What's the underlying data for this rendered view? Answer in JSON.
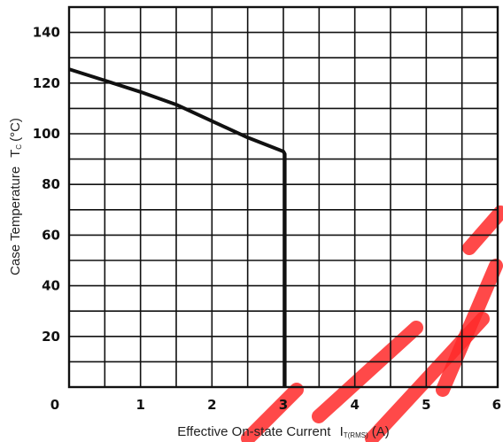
{
  "chart_data": {
    "type": "line",
    "title": "",
    "xlabel_main": "Effective On-state Current",
    "xlabel_symbol": "I",
    "xlabel_subscript": "T(RMS)",
    "xlabel_unit": "(A)",
    "ylabel_main": "Case Temperature",
    "ylabel_symbol": "T",
    "ylabel_subscript": "C",
    "ylabel_unit": "(°C)",
    "xlim": [
      0,
      6
    ],
    "ylim": [
      0,
      150
    ],
    "x_ticks": [
      0,
      1,
      2,
      3,
      4,
      5,
      6
    ],
    "x_tick_labels": [
      "0",
      "1",
      "2",
      "3",
      "4",
      "5",
      "6"
    ],
    "y_ticks": [
      20,
      40,
      60,
      80,
      100,
      120,
      140
    ],
    "y_tick_labels": [
      "20",
      "40",
      "60",
      "80",
      "100",
      "120",
      "140"
    ],
    "grid": true,
    "grid_x_step": 0.5,
    "grid_y_step": 10,
    "series": [
      {
        "x": [
          0,
          0.5,
          1.0,
          1.5,
          2.0,
          2.5,
          3.0,
          3.02,
          3.02
        ],
        "y": [
          125.5,
          121,
          116.5,
          111.5,
          105,
          98.5,
          93,
          92,
          0
        ]
      }
    ],
    "accent_color": "#111111",
    "watermark_color": "#ff2a2a"
  }
}
